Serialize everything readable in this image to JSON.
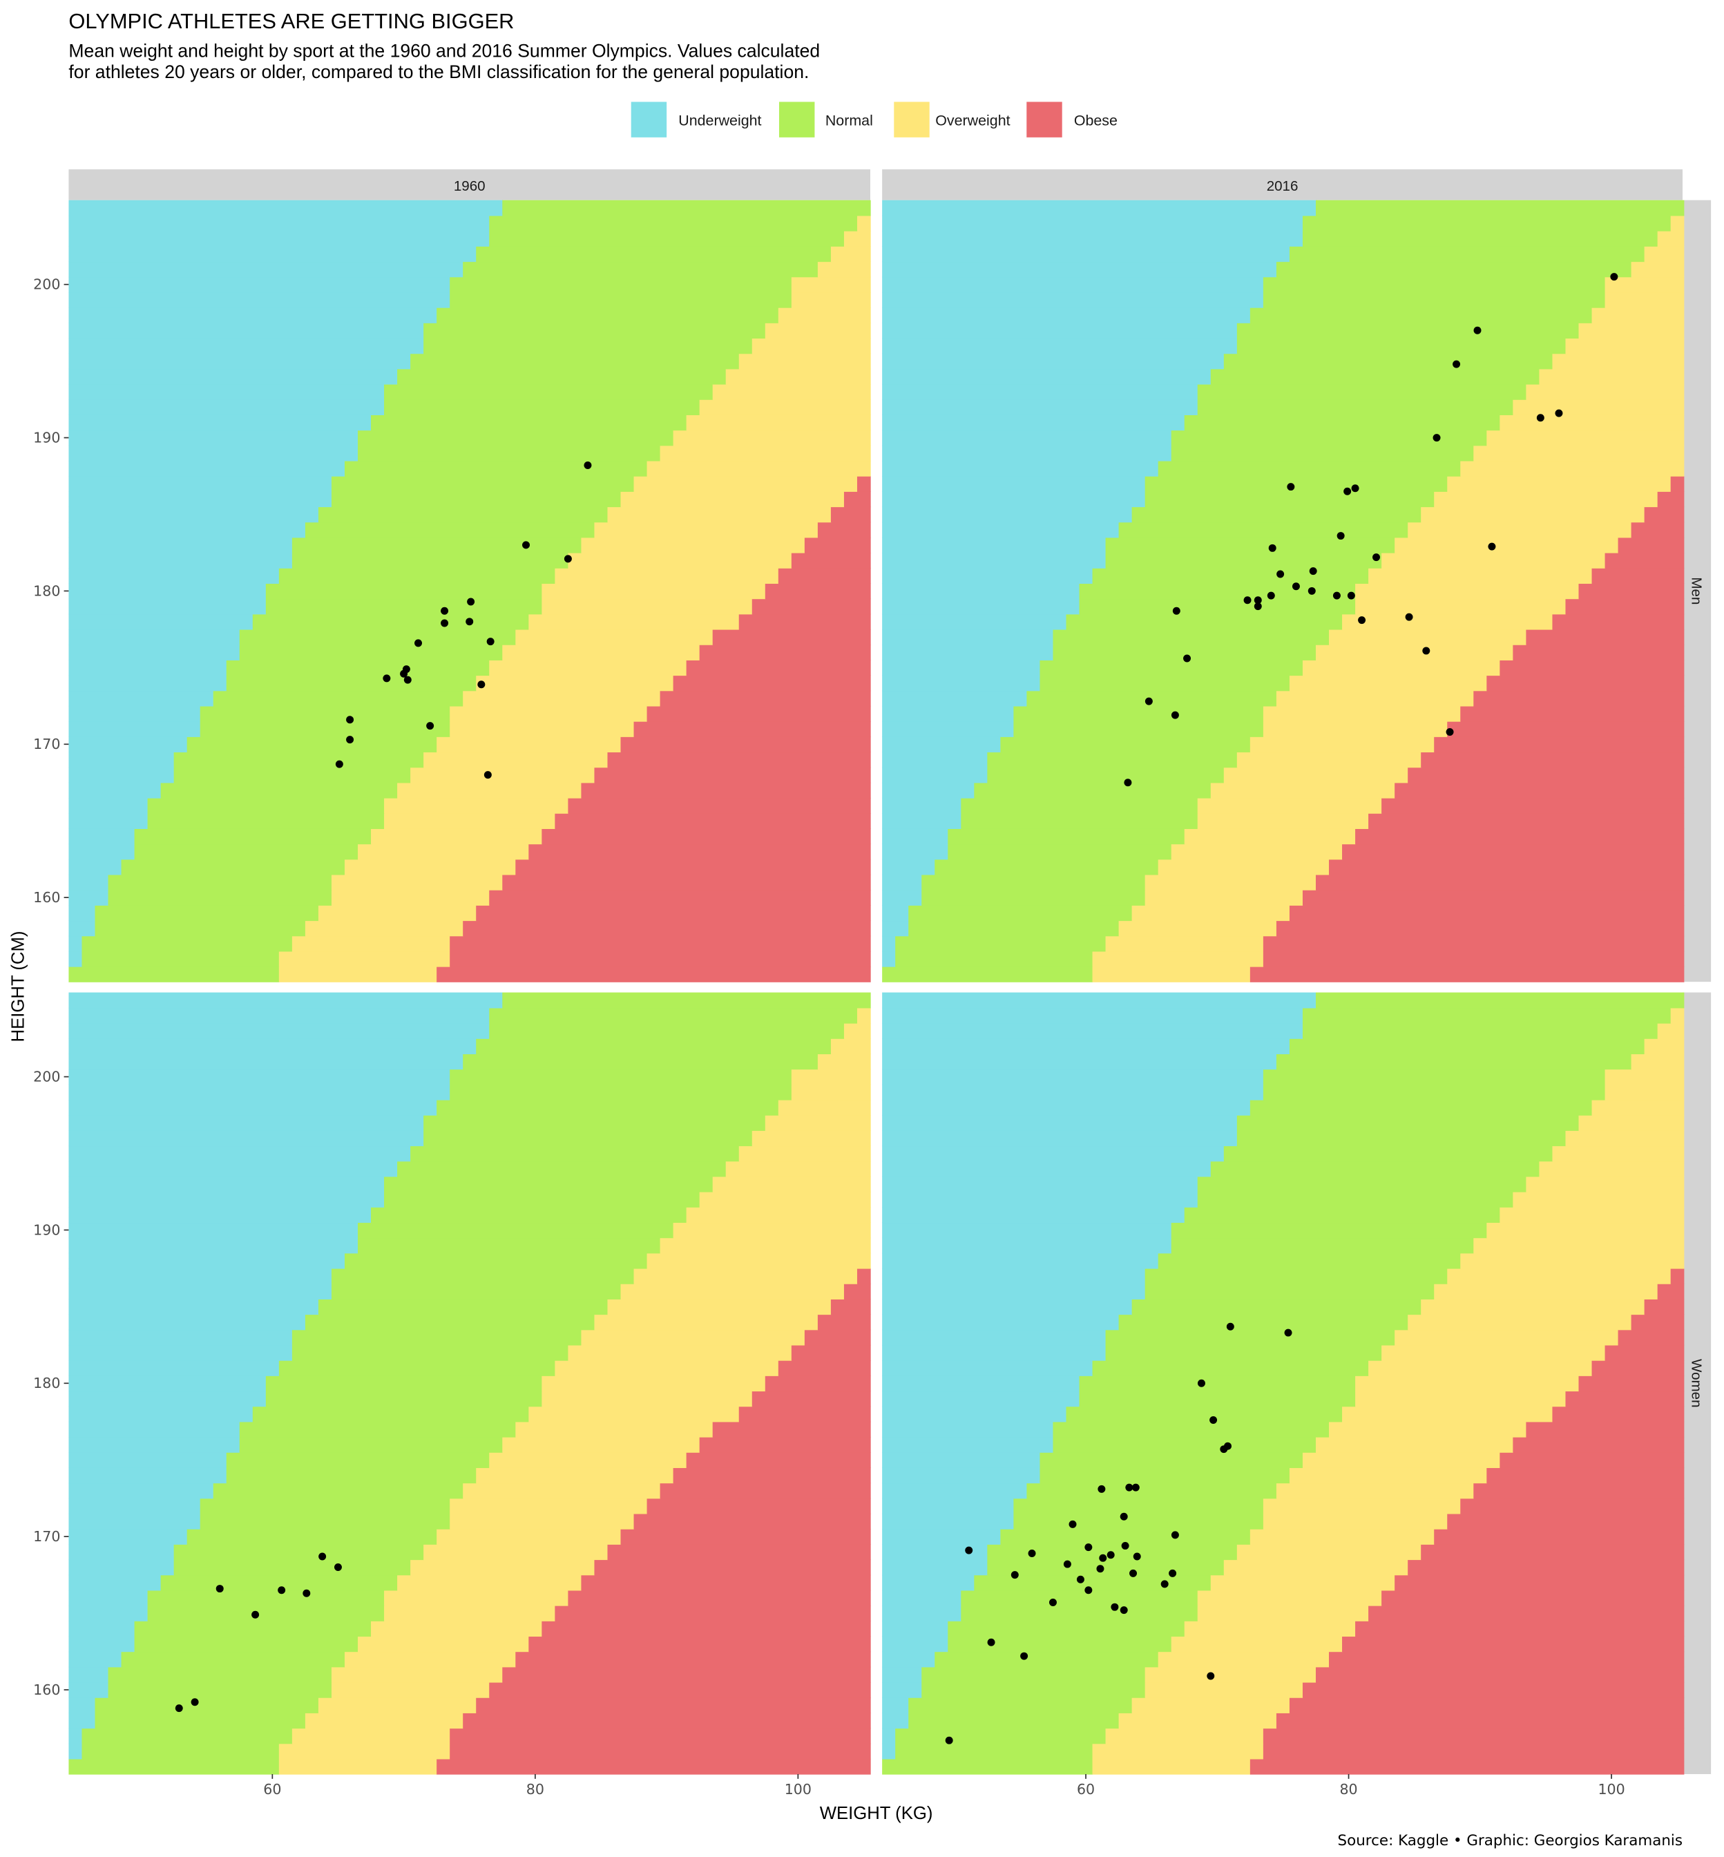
{
  "chart_data": {
    "type": "scatter",
    "title": "OLYMPIC ATHLETES ARE GETTING BIGGER",
    "subtitle_lines": [
      "Mean weight and height by sport at the 1960 and 2016 Summer Olympics. Values calculated",
      "for athletes 20 years or older, compared to the BMI classification for the general population."
    ],
    "caption": "Source: Kaggle • Graphic: Georgios Karamanis",
    "xlabel": "WEIGHT (KG)",
    "ylabel": "HEIGHT (CM)",
    "xlim": [
      44.5,
      105.5
    ],
    "ylim": [
      154.5,
      205.5
    ],
    "xticks": [
      60,
      80,
      100
    ],
    "yticks": [
      160,
      170,
      180,
      190,
      200
    ],
    "xtick_labels": [
      "60",
      "80",
      "100"
    ],
    "ytick_labels": [
      "160",
      "170",
      "180",
      "190",
      "200"
    ],
    "legend": {
      "position": "top",
      "entries": [
        {
          "label": "Underweight",
          "color": "#7FDFE7",
          "bmi_max": 18.5
        },
        {
          "label": "Normal",
          "color": "#B1EF58",
          "bmi_max": 25
        },
        {
          "label": "Overweight",
          "color": "#FEE679",
          "bmi_max": 30
        },
        {
          "label": "Obese",
          "color": "#EA6A6F",
          "bmi_max": null
        }
      ]
    },
    "background_grid": {
      "weight_from": 45,
      "weight_to": 105,
      "height_from": 155,
      "height_to": 205,
      "step": 1
    },
    "columns": [
      "1960",
      "2016"
    ],
    "rows": [
      "Men",
      "Women"
    ],
    "facets": [
      {
        "year": "1960",
        "sex": "Men",
        "points": [
          [
            84.0,
            188.2
          ],
          [
            79.3,
            183.0
          ],
          [
            82.5,
            182.1
          ],
          [
            75.1,
            179.3
          ],
          [
            73.1,
            178.7
          ],
          [
            73.1,
            177.9
          ],
          [
            75.0,
            178.0
          ],
          [
            71.1,
            176.6
          ],
          [
            76.6,
            176.7
          ],
          [
            68.7,
            174.3
          ],
          [
            70.0,
            174.6
          ],
          [
            70.2,
            174.9
          ],
          [
            70.3,
            174.2
          ],
          [
            75.9,
            173.9
          ],
          [
            65.9,
            171.6
          ],
          [
            72.0,
            171.2
          ],
          [
            65.9,
            170.3
          ],
          [
            65.1,
            168.7
          ],
          [
            76.4,
            168.0
          ]
        ]
      },
      {
        "year": "2016",
        "sex": "Men",
        "points": [
          [
            100.2,
            200.5
          ],
          [
            89.8,
            197.0
          ],
          [
            88.2,
            194.8
          ],
          [
            94.6,
            191.3
          ],
          [
            96.0,
            191.6
          ],
          [
            86.7,
            190.0
          ],
          [
            75.6,
            186.8
          ],
          [
            79.9,
            186.5
          ],
          [
            80.5,
            186.7
          ],
          [
            79.4,
            183.6
          ],
          [
            74.2,
            182.8
          ],
          [
            82.1,
            182.2
          ],
          [
            90.9,
            182.9
          ],
          [
            74.8,
            181.1
          ],
          [
            77.3,
            181.3
          ],
          [
            76.0,
            180.3
          ],
          [
            77.2,
            180.0
          ],
          [
            74.1,
            179.7
          ],
          [
            72.3,
            179.4
          ],
          [
            73.1,
            179.4
          ],
          [
            73.1,
            179.0
          ],
          [
            79.1,
            179.7
          ],
          [
            80.2,
            179.7
          ],
          [
            66.9,
            178.7
          ],
          [
            81.0,
            178.1
          ],
          [
            84.6,
            178.3
          ],
          [
            67.7,
            175.6
          ],
          [
            85.9,
            176.1
          ],
          [
            64.8,
            172.8
          ],
          [
            66.8,
            171.9
          ],
          [
            87.7,
            170.8
          ],
          [
            63.2,
            167.5
          ]
        ]
      },
      {
        "year": "1960",
        "sex": "Women",
        "points": [
          [
            52.9,
            158.8
          ],
          [
            54.1,
            159.2
          ],
          [
            56.0,
            166.6
          ],
          [
            58.7,
            164.9
          ],
          [
            60.7,
            166.5
          ],
          [
            62.6,
            166.3
          ],
          [
            63.8,
            168.7
          ],
          [
            65.0,
            168.0
          ]
        ]
      },
      {
        "year": "2016",
        "sex": "Women",
        "points": [
          [
            71.0,
            183.7
          ],
          [
            75.4,
            183.3
          ],
          [
            68.8,
            180.0
          ],
          [
            69.7,
            177.6
          ],
          [
            70.5,
            175.7
          ],
          [
            70.8,
            175.9
          ],
          [
            61.2,
            173.1
          ],
          [
            63.3,
            173.2
          ],
          [
            63.8,
            173.2
          ],
          [
            62.9,
            171.3
          ],
          [
            59.0,
            170.8
          ],
          [
            66.8,
            170.1
          ],
          [
            51.1,
            169.1
          ],
          [
            55.9,
            168.9
          ],
          [
            60.2,
            169.3
          ],
          [
            63.0,
            169.4
          ],
          [
            61.3,
            168.6
          ],
          [
            61.9,
            168.8
          ],
          [
            63.9,
            168.7
          ],
          [
            58.6,
            168.2
          ],
          [
            61.1,
            167.9
          ],
          [
            54.6,
            167.5
          ],
          [
            59.6,
            167.2
          ],
          [
            63.6,
            167.6
          ],
          [
            66.6,
            167.6
          ],
          [
            60.2,
            166.5
          ],
          [
            66.0,
            166.9
          ],
          [
            57.5,
            165.7
          ],
          [
            62.2,
            165.4
          ],
          [
            62.9,
            165.2
          ],
          [
            52.8,
            163.1
          ],
          [
            55.3,
            162.2
          ],
          [
            69.5,
            160.9
          ],
          [
            49.6,
            156.7
          ]
        ]
      }
    ]
  }
}
